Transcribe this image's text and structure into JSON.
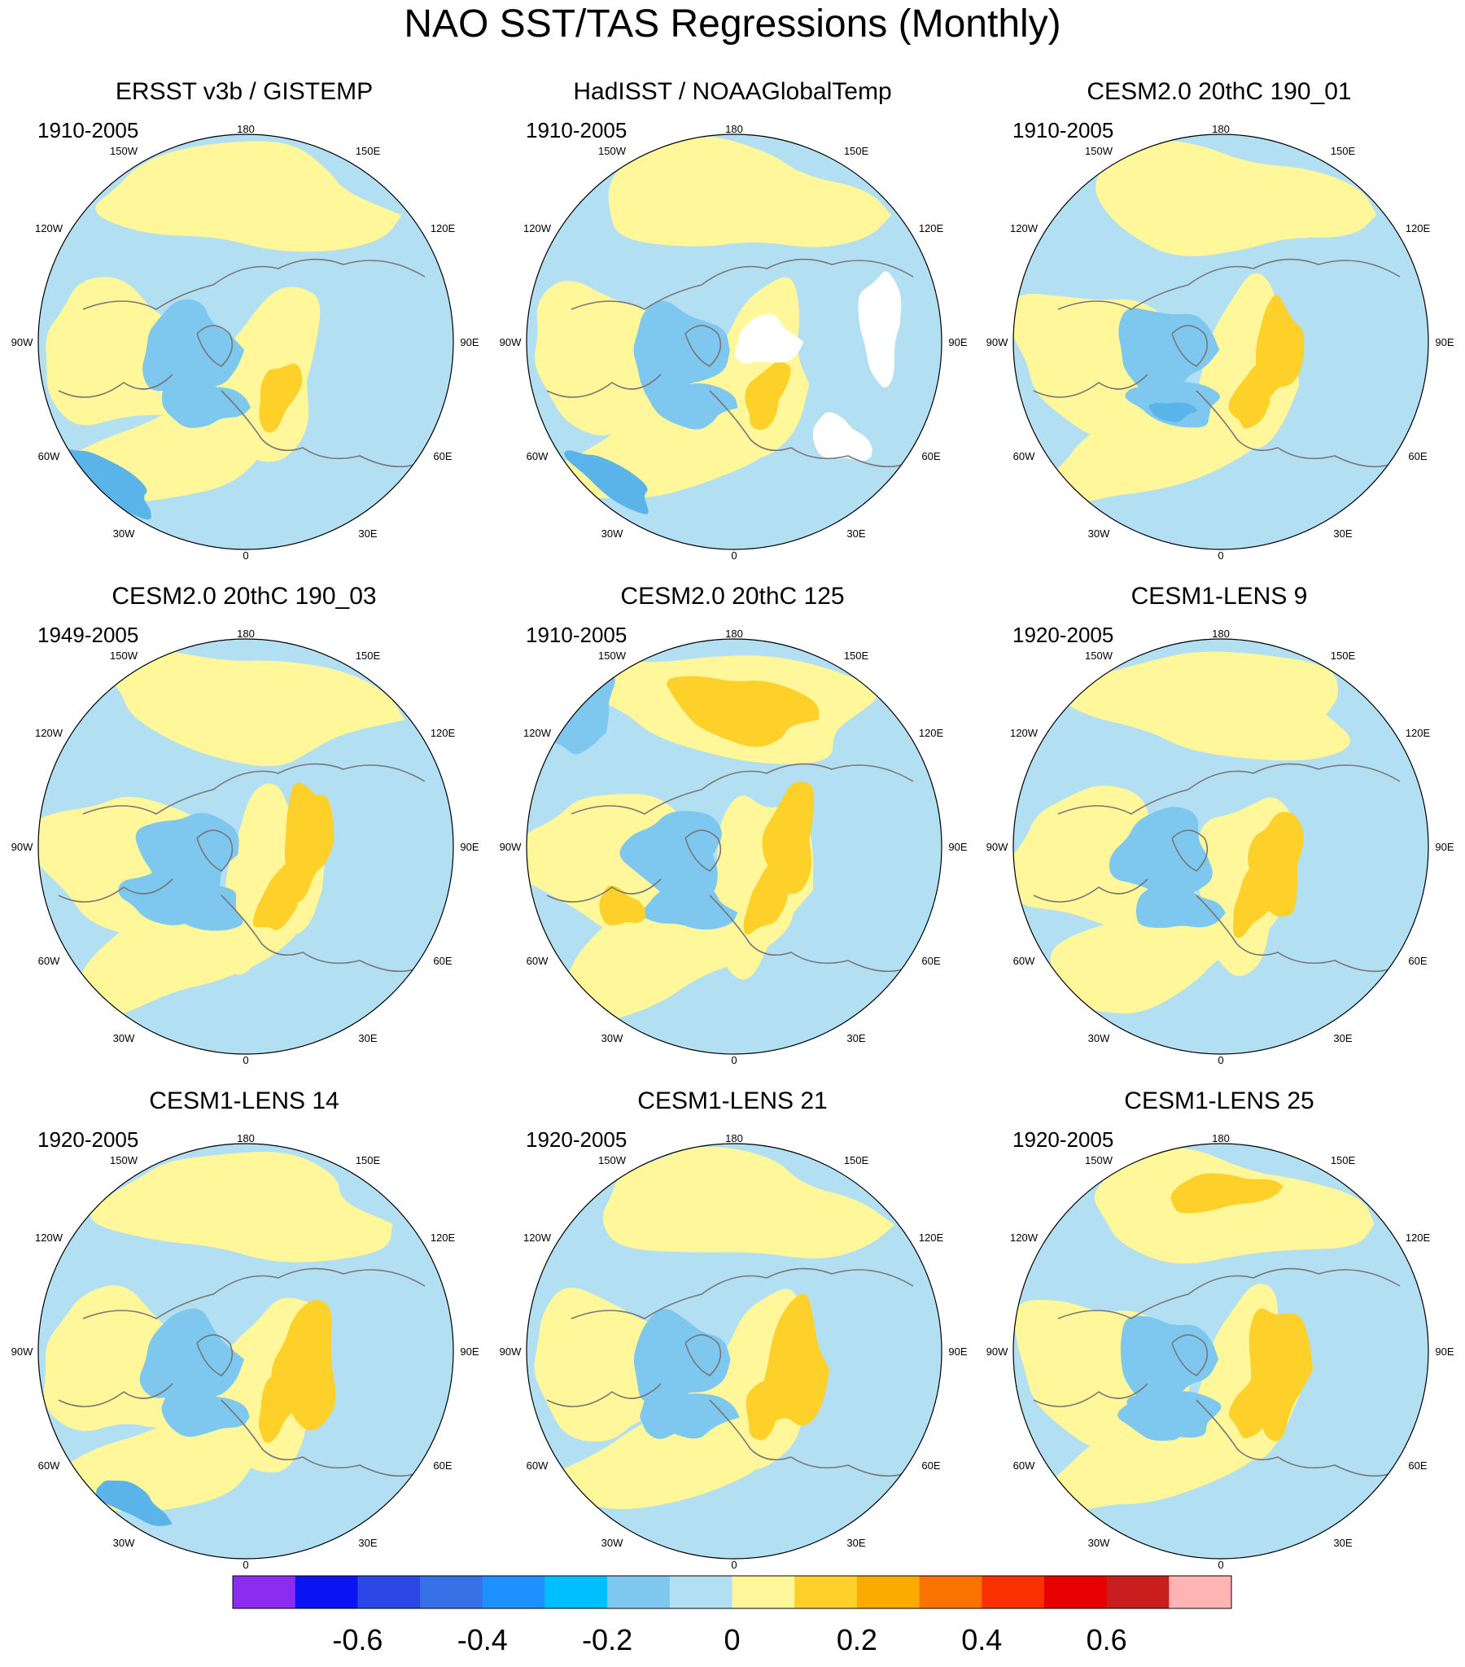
{
  "title": "NAO SST/TAS Regressions (Monthly)",
  "panels": [
    {
      "title": "ERSST v3b / GISTEMP",
      "period": "1910-2005",
      "variant": 0
    },
    {
      "title": "HadISST / NOAAGlobalTemp",
      "period": "1910-2005",
      "variant": 1
    },
    {
      "title": "CESM2.0 20thC 190_01",
      "period": "1910-2005",
      "variant": 2
    },
    {
      "title": "CESM2.0 20thC 190_03",
      "period": "1949-2005",
      "variant": 3
    },
    {
      "title": "CESM2.0 20thC 125",
      "period": "1910-2005",
      "variant": 4
    },
    {
      "title": "CESM1-LENS 9",
      "period": "1920-2005",
      "variant": 5
    },
    {
      "title": "CESM1-LENS 14",
      "period": "1920-2005",
      "variant": 6
    },
    {
      "title": "CESM1-LENS 21",
      "period": "1920-2005",
      "variant": 7
    },
    {
      "title": "CESM1-LENS 25",
      "period": "1920-2005",
      "variant": 8
    }
  ],
  "longitude_labels": [
    "180",
    "150E",
    "120E",
    "90E",
    "60E",
    "30E",
    "0",
    "30W",
    "60W",
    "90W",
    "120W",
    "150W"
  ],
  "colorbar": {
    "colors": [
      "#8b2cf0",
      "#0a14f2",
      "#2d46e6",
      "#3670e6",
      "#1e90ff",
      "#00bfff",
      "#7ec8f0",
      "#b3dff2",
      "#fff799",
      "#fdd02a",
      "#fbaa00",
      "#fa7300",
      "#fa3000",
      "#e60000",
      "#c81e1e",
      "#ffb4b4"
    ],
    "tick_labels": [
      "-0.6",
      "-0.4",
      "-0.2",
      "0",
      "0.2",
      "0.4",
      "0.6"
    ]
  },
  "colors": {
    "ocean_neg": "#b3dff2",
    "ocean_pos": "#fff799",
    "pos2": "#fdd02a",
    "pos3": "#fbaa00",
    "neg2": "#7ec8f0",
    "neg3": "#5ab4ea",
    "missing": "#ffffff",
    "coast": "#777777"
  }
}
